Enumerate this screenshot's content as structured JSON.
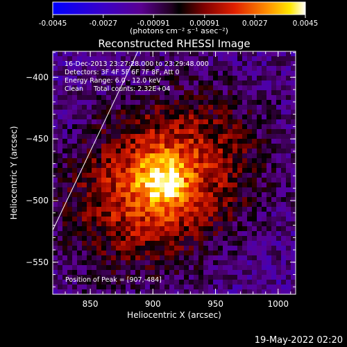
{
  "chart_data": {
    "type": "heatmap",
    "title": "Reconstructed RHESSI Image",
    "xlabel": "Heliocentric X (arcsec)",
    "ylabel": "Heliocentric Y (arcsec)",
    "xlim": [
      820,
      1014
    ],
    "ylim": [
      -576,
      -379
    ],
    "xticks": [
      850,
      900,
      950,
      1000
    ],
    "yticks": [
      -400,
      -450,
      -500,
      -550
    ],
    "colorbar": {
      "min": -0.0045,
      "max": 0.0045,
      "ticks": [
        "-0.0045",
        "-0.0027",
        "-0.00091",
        "0.00091",
        "0.0027",
        "0.0045"
      ],
      "units_label": "(photons cm⁻² s⁻¹ asec⁻²)",
      "colormap": "rainbow/heat: blue-purple-black-red-orange-yellow-white"
    },
    "annotations": [
      "16-Dec-2013 23:27:28.000 to 23:29:48.000",
      "Detectors: 3F 4F 5F 6F 7F 8F, Att 0",
      "Energy Range: 6.0 - 12.0 keV",
      "Clean     Total counts: 2.32E+04"
    ],
    "peak_label": "Position of Peak = [907,-484]",
    "peak": [
      907,
      -484
    ],
    "limb_line": [
      [
        820,
        -524
      ],
      [
        888,
        -379
      ]
    ],
    "grid": false
  },
  "footer": {
    "date": "19-May-2022 02:20"
  },
  "colors": {
    "background": "#000000",
    "text": "#ffffff"
  }
}
